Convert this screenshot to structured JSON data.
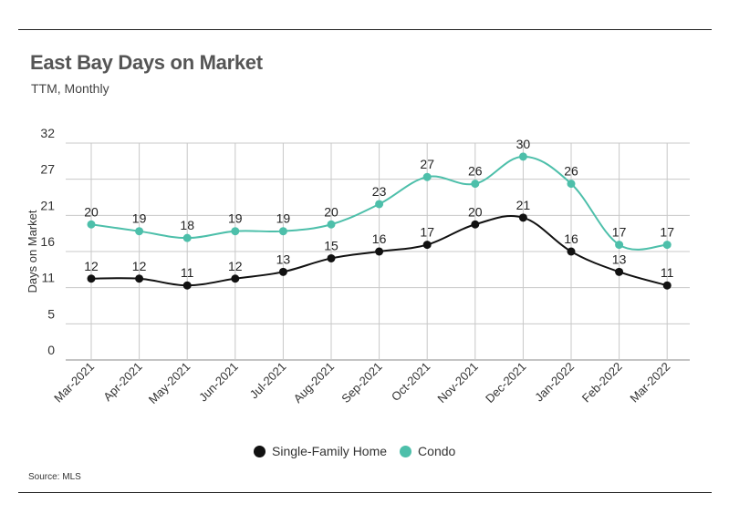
{
  "header": {
    "title": "East Bay Days on Market",
    "subtitle": "TTM, Monthly"
  },
  "footer": {
    "source": "Source:  MLS"
  },
  "chart_data": {
    "type": "line",
    "categories": [
      "Mar-2021",
      "Apr-2021",
      "May-2021",
      "Jun-2021",
      "Jul-2021",
      "Aug-2021",
      "Sep-2021",
      "Oct-2021",
      "Nov-2021",
      "Dec-2021",
      "Jan-2022",
      "Feb-2022",
      "Mar-2022"
    ],
    "ylabel": "Days on Market",
    "ytick_labels": [
      "0",
      "5",
      "11",
      "16",
      "21",
      "27",
      "32"
    ],
    "ylim": [
      0,
      32
    ],
    "grid": true,
    "legend_position": "bottom",
    "series": [
      {
        "name": "Single-Family Home",
        "color": "#111111",
        "values": [
          12,
          12,
          11,
          12,
          13,
          15,
          16,
          17,
          20,
          21,
          16,
          13,
          11
        ]
      },
      {
        "name": "Condo",
        "color": "#4dbfaa",
        "values": [
          20,
          19,
          18,
          19,
          19,
          20,
          23,
          27,
          26,
          30,
          26,
          17,
          17
        ]
      }
    ]
  }
}
